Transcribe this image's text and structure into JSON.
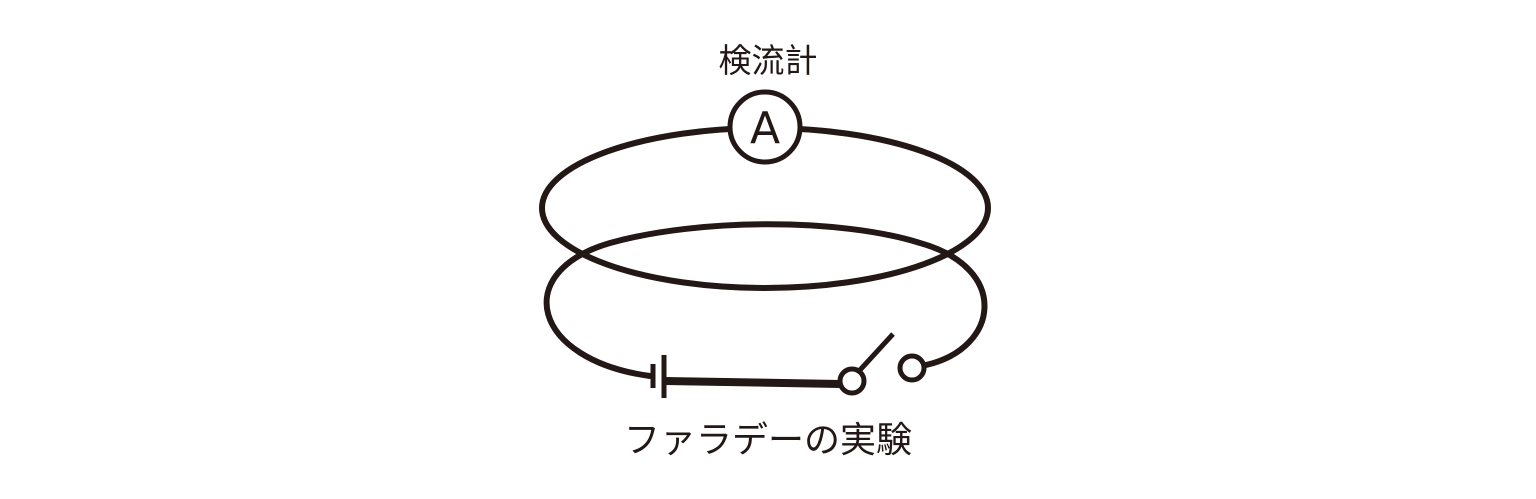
{
  "diagram": {
    "galvanometer_label": "検流計",
    "galvanometer_symbol": "A",
    "caption": "ファラデーの実験",
    "stroke_color": "#231815",
    "background_color": "#ffffff",
    "components": [
      "upper-coil",
      "lower-coil",
      "galvanometer",
      "battery",
      "switch"
    ]
  }
}
